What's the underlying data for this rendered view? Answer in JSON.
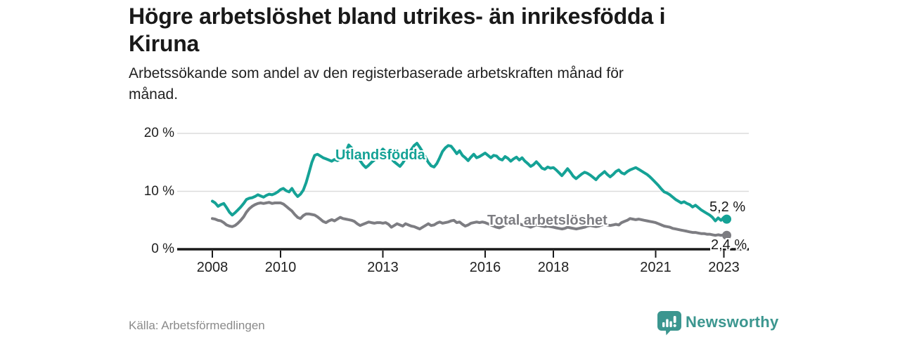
{
  "chart_data": {
    "type": "line",
    "title_lines": [
      "Högre arbetslöshet bland utrikes- än inrikesfödda i",
      "Kiruna"
    ],
    "subtitle_lines": [
      "Arbetssökande som andel av den registerbaserade arbetskraften månad för",
      "månad."
    ],
    "source": "Källa: Arbetsförmedlingen",
    "y_unit": "%",
    "ylim": [
      0,
      20
    ],
    "grid": "horizontal-only",
    "legend": "inline-labels",
    "x_start": {
      "year": 2008,
      "month": 1
    },
    "x_interval": "monthly",
    "y_ticks": [
      {
        "value": 0,
        "label": "0 %"
      },
      {
        "value": 10,
        "label": "10 %"
      },
      {
        "value": 20,
        "label": "20 %"
      }
    ],
    "x_ticks": [
      {
        "value": 2008,
        "label": "2008"
      },
      {
        "value": 2010,
        "label": "2010"
      },
      {
        "value": 2013,
        "label": "2013"
      },
      {
        "value": 2016,
        "label": "2016"
      },
      {
        "value": 2018,
        "label": "2018"
      },
      {
        "value": 2021,
        "label": "2021"
      },
      {
        "value": 2023,
        "label": "2023"
      }
    ],
    "series": [
      {
        "name": "Utlandsfödda",
        "color": "#15a296",
        "end_label": "5,2 %",
        "values": [
          8.3,
          8.0,
          7.4,
          7.7,
          7.9,
          7.2,
          6.4,
          5.9,
          6.3,
          6.8,
          7.3,
          7.9,
          8.6,
          8.8,
          8.9,
          9.1,
          9.4,
          9.2,
          9.0,
          9.3,
          9.5,
          9.4,
          9.6,
          9.9,
          10.3,
          10.5,
          10.1,
          9.9,
          10.5,
          9.7,
          9.1,
          9.5,
          10.2,
          11.5,
          13.2,
          15.0,
          16.2,
          16.4,
          16.1,
          15.8,
          15.6,
          15.4,
          15.2,
          15.5,
          15.3,
          15.6,
          15.9,
          16.8,
          18.0,
          17.5,
          16.8,
          16.0,
          15.3,
          14.6,
          14.1,
          14.5,
          15.0,
          15.4,
          15.8,
          16.6,
          17.3,
          16.8,
          16.2,
          15.6,
          15.1,
          14.7,
          14.3,
          14.9,
          15.7,
          16.4,
          17.2,
          17.9,
          18.3,
          17.6,
          16.8,
          15.9,
          15.0,
          14.4,
          14.2,
          14.8,
          15.8,
          16.9,
          17.5,
          17.9,
          17.8,
          17.2,
          16.5,
          17.0,
          16.2,
          15.8,
          15.3,
          15.9,
          16.4,
          15.8,
          16.0,
          16.3,
          16.6,
          16.2,
          15.8,
          16.2,
          16.1,
          15.6,
          15.4,
          16.0,
          15.7,
          15.2,
          15.6,
          15.9,
          15.4,
          15.8,
          15.2,
          14.8,
          14.3,
          14.6,
          15.1,
          14.6,
          14.0,
          13.8,
          14.2,
          14.0,
          14.1,
          13.7,
          13.2,
          12.7,
          13.3,
          13.9,
          13.3,
          12.6,
          12.2,
          12.6,
          13.0,
          13.3,
          13.1,
          12.8,
          12.4,
          12.0,
          12.6,
          13.0,
          13.4,
          12.9,
          12.5,
          12.9,
          13.4,
          13.7,
          13.2,
          13.0,
          13.4,
          13.7,
          13.9,
          14.1,
          13.8,
          13.5,
          13.2,
          12.9,
          12.5,
          12.0,
          11.5,
          11.0,
          10.4,
          9.9,
          9.7,
          9.4,
          9.0,
          8.6,
          8.3,
          8.0,
          8.2,
          7.9,
          7.7,
          7.3,
          7.6,
          7.2,
          6.8,
          6.5,
          6.2,
          5.9,
          5.5,
          4.9,
          5.4,
          5.0,
          5.5,
          5.2
        ]
      },
      {
        "name": "Total arbetslöshet",
        "color": "#7d7d82",
        "end_label": "2,4 %",
        "values": [
          5.3,
          5.2,
          5.0,
          4.9,
          4.6,
          4.2,
          4.0,
          3.9,
          4.1,
          4.5,
          5.0,
          5.6,
          6.4,
          7.0,
          7.4,
          7.7,
          7.9,
          8.0,
          7.9,
          8.0,
          8.1,
          7.9,
          8.0,
          8.0,
          8.0,
          7.8,
          7.4,
          7.0,
          6.6,
          6.0,
          5.5,
          5.3,
          5.8,
          6.1,
          6.1,
          6.0,
          5.9,
          5.6,
          5.2,
          4.8,
          4.6,
          4.9,
          5.1,
          4.9,
          5.2,
          5.5,
          5.3,
          5.2,
          5.1,
          5.0,
          4.8,
          4.4,
          4.1,
          4.3,
          4.5,
          4.7,
          4.6,
          4.5,
          4.6,
          4.6,
          4.5,
          4.6,
          4.3,
          3.8,
          4.1,
          4.4,
          4.2,
          4.0,
          4.4,
          4.2,
          4.0,
          3.9,
          3.7,
          3.5,
          3.8,
          4.1,
          4.4,
          4.1,
          4.2,
          4.5,
          4.7,
          4.5,
          4.6,
          4.7,
          4.9,
          5.0,
          4.6,
          4.7,
          4.3,
          4.0,
          4.2,
          4.5,
          4.6,
          4.7,
          4.6,
          4.7,
          4.6,
          4.4,
          4.2,
          4.0,
          3.8,
          3.7,
          3.9,
          4.2,
          4.4,
          4.3,
          4.4,
          4.3,
          4.4,
          4.2,
          4.1,
          4.0,
          3.8,
          4.0,
          4.2,
          4.1,
          4.0,
          3.9,
          4.0,
          3.9,
          3.8,
          3.7,
          3.6,
          3.5,
          3.6,
          3.8,
          3.7,
          3.6,
          3.5,
          3.6,
          3.7,
          3.8,
          4.0,
          4.1,
          4.0,
          3.9,
          4.0,
          4.2,
          4.3,
          4.2,
          4.1,
          4.2,
          4.3,
          4.2,
          4.6,
          4.8,
          5.0,
          5.3,
          5.2,
          5.1,
          5.2,
          5.1,
          5.0,
          4.9,
          4.8,
          4.7,
          4.6,
          4.4,
          4.2,
          4.0,
          3.9,
          3.8,
          3.6,
          3.5,
          3.4,
          3.3,
          3.2,
          3.1,
          3.0,
          2.9,
          2.9,
          2.8,
          2.7,
          2.7,
          2.6,
          2.6,
          2.5,
          2.4,
          2.5,
          2.4,
          2.5,
          2.4
        ]
      }
    ]
  },
  "footer": {
    "brand": "Newsworthy"
  }
}
